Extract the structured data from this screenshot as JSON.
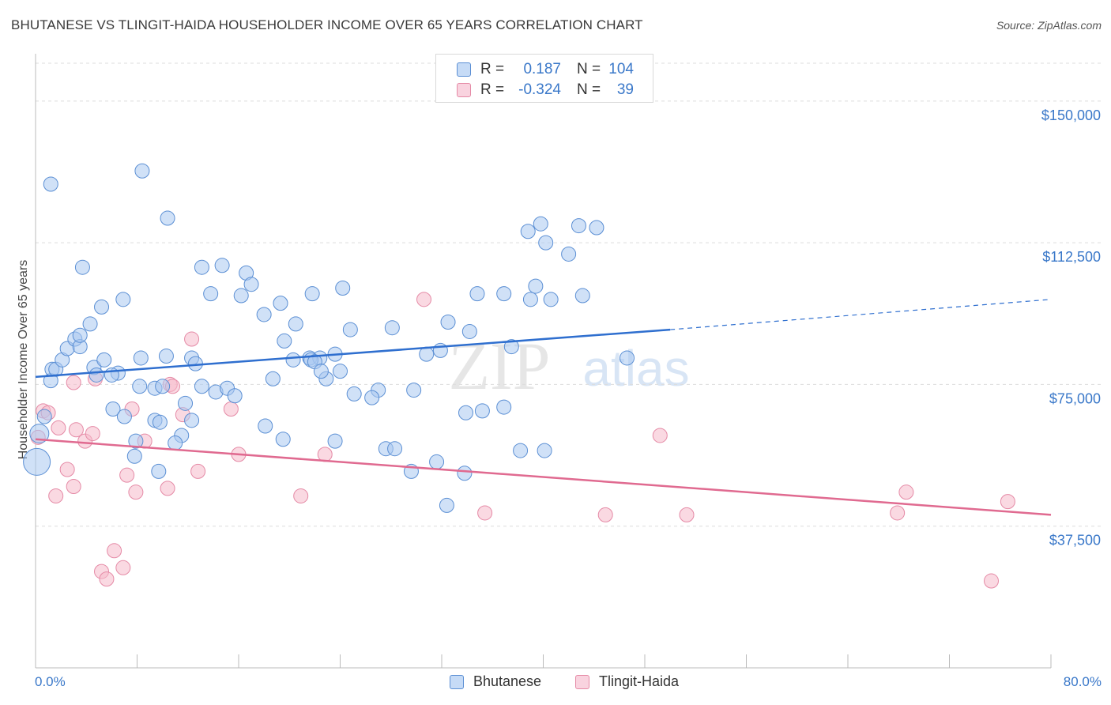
{
  "header": {
    "title": "BHUTANESE VS TLINGIT-HAIDA HOUSEHOLDER INCOME OVER 65 YEARS CORRELATION CHART",
    "source": "Source: ZipAtlas.com"
  },
  "watermark": {
    "zip": "ZIP",
    "atlas": "atlas"
  },
  "legend_top": {
    "rows": [
      {
        "r_label": "R =",
        "r_value": "0.187",
        "n_label": "N =",
        "n_value": "104",
        "color": "#a9c8f0"
      },
      {
        "r_label": "R =",
        "r_value": "-0.324",
        "n_label": "N =",
        "n_value": "39",
        "color": "#f5b9cb"
      }
    ]
  },
  "colors": {
    "blue_fill": "#a9c8f0",
    "blue_stroke": "#5b8fd4",
    "blue_line": "#2f6fcf",
    "pink_fill": "#f5b9cb",
    "pink_stroke": "#e58aa6",
    "pink_line": "#e06a90",
    "axis_text": "#3a78c9",
    "grid": "#dddddd"
  },
  "chart_data": {
    "type": "scatter",
    "title": "BHUTANESE VS TLINGIT-HAIDA HOUSEHOLDER INCOME OVER 65 YEARS CORRELATION CHART",
    "xlabel": "",
    "ylabel": "Householder Income Over 65 years",
    "xlim": [
      0,
      80
    ],
    "ylim": [
      0,
      160000
    ],
    "x_tick_labels": [
      "0.0%",
      "80.0%"
    ],
    "y_ticks": [
      37500,
      75000,
      112500,
      150000
    ],
    "y_tick_labels": [
      "$37,500",
      "$75,000",
      "$112,500",
      "$150,000"
    ],
    "grid": "horizontal dashed",
    "legend": "bottom-center",
    "series": [
      {
        "name": "Bhutanese",
        "color": "#a9c8f0",
        "trend": {
          "x0": 0,
          "y0": 77000,
          "x1": 50,
          "y1": 89500,
          "x_ext": 80,
          "y_ext": 97500
        },
        "points": [
          [
            1.2,
            128000
          ],
          [
            3.7,
            106000
          ],
          [
            8.4,
            131500
          ],
          [
            10.4,
            119000
          ],
          [
            6.9,
            97500
          ],
          [
            5.2,
            95500
          ],
          [
            13.1,
            106000
          ],
          [
            14.7,
            106500
          ],
          [
            16.6,
            104500
          ],
          [
            17.0,
            101500
          ],
          [
            16.2,
            98500
          ],
          [
            13.8,
            99000
          ],
          [
            19.3,
            96500
          ],
          [
            18.0,
            93500
          ],
          [
            24.2,
            100500
          ],
          [
            21.8,
            99000
          ],
          [
            20.5,
            91000
          ],
          [
            24.8,
            89500
          ],
          [
            19.6,
            86500
          ],
          [
            21.6,
            82000
          ],
          [
            22.4,
            82000
          ],
          [
            23.6,
            83000
          ],
          [
            22.9,
            76500
          ],
          [
            24.0,
            78500
          ],
          [
            28.1,
            90000
          ],
          [
            31.9,
            84000
          ],
          [
            32.5,
            91500
          ],
          [
            34.2,
            89000
          ],
          [
            34.8,
            99000
          ],
          [
            36.9,
            99000
          ],
          [
            37.5,
            85000
          ],
          [
            40.2,
            112500
          ],
          [
            42.0,
            109500
          ],
          [
            39.4,
            101000
          ],
          [
            39.0,
            97500
          ],
          [
            40.6,
            97500
          ],
          [
            38.8,
            115500
          ],
          [
            39.8,
            117500
          ],
          [
            44.2,
            116500
          ],
          [
            42.8,
            117000
          ],
          [
            43.1,
            98500
          ],
          [
            46.6,
            82000
          ],
          [
            1.2,
            76000
          ],
          [
            1.3,
            79000
          ],
          [
            1.6,
            79000
          ],
          [
            2.1,
            81500
          ],
          [
            2.5,
            84500
          ],
          [
            3.1,
            87000
          ],
          [
            3.5,
            85000
          ],
          [
            3.5,
            88000
          ],
          [
            4.3,
            91000
          ],
          [
            4.6,
            79500
          ],
          [
            4.8,
            77500
          ],
          [
            5.4,
            81500
          ],
          [
            6.5,
            78000
          ],
          [
            6.0,
            77500
          ],
          [
            8.3,
            82000
          ],
          [
            10.3,
            82500
          ],
          [
            12.3,
            82000
          ],
          [
            12.6,
            80500
          ],
          [
            9.4,
            74000
          ],
          [
            8.2,
            74500
          ],
          [
            10.0,
            74500
          ],
          [
            11.8,
            70000
          ],
          [
            13.1,
            74500
          ],
          [
            14.2,
            73000
          ],
          [
            15.1,
            74000
          ],
          [
            15.7,
            72000
          ],
          [
            18.7,
            76500
          ],
          [
            20.3,
            81500
          ],
          [
            21.7,
            81500
          ],
          [
            22.0,
            81000
          ],
          [
            22.5,
            78500
          ],
          [
            25.1,
            72500
          ],
          [
            27.0,
            73500
          ],
          [
            26.5,
            71500
          ],
          [
            29.8,
            73500
          ],
          [
            30.8,
            83000
          ],
          [
            36.9,
            69000
          ],
          [
            35.2,
            68000
          ],
          [
            33.9,
            67500
          ],
          [
            6.1,
            68500
          ],
          [
            7.0,
            66500
          ],
          [
            9.4,
            65500
          ],
          [
            9.8,
            65000
          ],
          [
            12.3,
            65500
          ],
          [
            11.5,
            61500
          ],
          [
            11.0,
            59500
          ],
          [
            18.1,
            64000
          ],
          [
            19.5,
            60500
          ],
          [
            23.6,
            60000
          ],
          [
            27.6,
            58000
          ],
          [
            28.3,
            58000
          ],
          [
            29.6,
            52000
          ],
          [
            31.6,
            54500
          ],
          [
            33.8,
            51500
          ],
          [
            32.4,
            43000
          ],
          [
            38.2,
            57500
          ],
          [
            40.1,
            57500
          ],
          [
            0.3,
            62000
          ],
          [
            0.7,
            66500
          ],
          [
            7.9,
            60000
          ],
          [
            7.8,
            56000
          ],
          [
            9.7,
            52000
          ],
          [
            0.1,
            54500
          ]
        ]
      },
      {
        "name": "Tlingit-Haida",
        "color": "#f5b9cb",
        "trend": {
          "x0": 0,
          "y0": 60500,
          "x1": 80,
          "y1": 40500
        },
        "points": [
          [
            0.6,
            68000
          ],
          [
            1.0,
            67500
          ],
          [
            0.2,
            61000
          ],
          [
            1.8,
            63500
          ],
          [
            3.2,
            63000
          ],
          [
            3.9,
            60000
          ],
          [
            4.5,
            62000
          ],
          [
            4.7,
            76500
          ],
          [
            3.0,
            75500
          ],
          [
            7.6,
            68500
          ],
          [
            8.6,
            60000
          ],
          [
            10.6,
            75000
          ],
          [
            10.8,
            74500
          ],
          [
            11.6,
            67000
          ],
          [
            12.3,
            87000
          ],
          [
            15.4,
            68500
          ],
          [
            16.0,
            56500
          ],
          [
            12.8,
            52000
          ],
          [
            10.4,
            47500
          ],
          [
            7.9,
            46500
          ],
          [
            7.2,
            51000
          ],
          [
            2.5,
            52500
          ],
          [
            1.6,
            45500
          ],
          [
            20.9,
            45500
          ],
          [
            22.8,
            56500
          ],
          [
            30.6,
            97500
          ],
          [
            35.4,
            41000
          ],
          [
            44.9,
            40500
          ],
          [
            51.3,
            40500
          ],
          [
            49.2,
            61500
          ],
          [
            67.9,
            41000
          ],
          [
            68.6,
            46500
          ],
          [
            76.6,
            44000
          ],
          [
            75.3,
            23000
          ],
          [
            6.2,
            31000
          ],
          [
            5.2,
            25500
          ],
          [
            6.9,
            26500
          ],
          [
            5.6,
            23500
          ],
          [
            3.0,
            48000
          ]
        ]
      }
    ]
  },
  "bottom_legend": {
    "items": [
      "Bhutanese",
      "Tlingit-Haida"
    ]
  }
}
